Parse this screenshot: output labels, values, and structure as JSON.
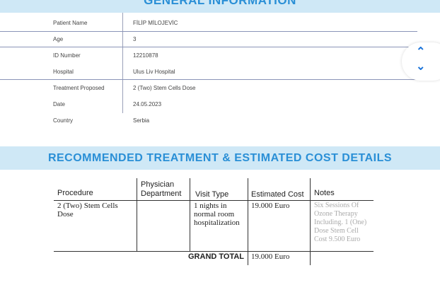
{
  "general": {
    "title": "GENERAL INFORMATION",
    "rows": [
      {
        "label": "Patient Name",
        "value": "FİLİP MİLOJEVİC"
      },
      {
        "label": "Age",
        "value": "3"
      },
      {
        "label": "ID Number",
        "value": "12210878"
      },
      {
        "label": "Hospital",
        "value": "Ulus Liv Hospital"
      },
      {
        "label": "Treatment Proposed",
        "value": "2 (Two) Stem Cells Dose"
      },
      {
        "label": "Date",
        "value": "24.05.2023"
      },
      {
        "label": "Country",
        "value": "Serbia"
      }
    ]
  },
  "treatment": {
    "title": "RECOMMENDED TREATMENT & ESTIMATED COST DETAILS",
    "headers": [
      "Procedure",
      "Physician Department",
      "Visit Type",
      "Estimated Cost",
      "Notes"
    ],
    "row": {
      "procedure": "2 (Two) Stem Cells Dose",
      "department": "",
      "visit_type": "1 nights in normal room hospitalization",
      "cost": "19.000 Euro",
      "notes": "Six Sessions Of Ozone Therapy Including. 1 (One) Dose Stem Cell Cost 9.500 Euro"
    },
    "grand_total_label": "GRAND TOTAL",
    "grand_total": "19.000 Euro"
  },
  "scroll": {
    "up_icon": "chevron-up-icon",
    "down_icon": "chevron-down-icon",
    "color": "#1a73d9"
  }
}
